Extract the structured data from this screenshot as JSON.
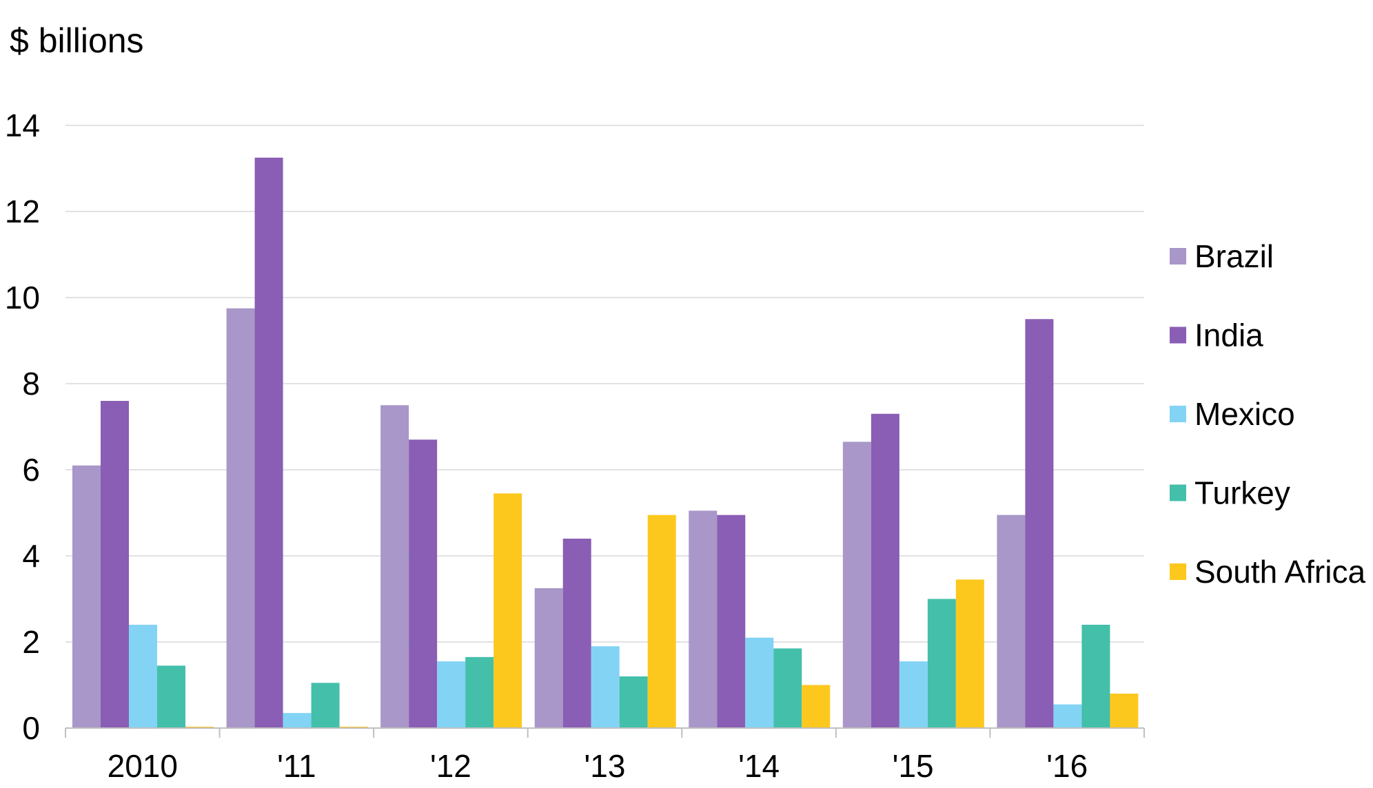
{
  "chart_data": {
    "type": "bar",
    "title": "",
    "ylabel": "$ billions",
    "xlabel": "",
    "ylim": [
      0,
      14
    ],
    "yticks": [
      0,
      2,
      4,
      6,
      8,
      10,
      12,
      14
    ],
    "grid": true,
    "legend_position": "right",
    "categories": [
      "2010",
      "'11",
      "'12",
      "'13",
      "'14",
      "'15",
      "'16"
    ],
    "series": [
      {
        "name": "Brazil",
        "color": "#a897c8",
        "values": [
          6.1,
          9.75,
          7.5,
          3.25,
          5.05,
          6.65,
          4.95
        ]
      },
      {
        "name": "India",
        "color": "#8a5eb4",
        "values": [
          7.6,
          13.25,
          6.7,
          4.4,
          4.95,
          7.3,
          9.5
        ]
      },
      {
        "name": "Mexico",
        "color": "#83d3f5",
        "values": [
          2.4,
          0.35,
          1.55,
          1.9,
          2.1,
          1.55,
          0.55
        ]
      },
      {
        "name": "Turkey",
        "color": "#43bfaa",
        "values": [
          1.45,
          1.05,
          1.65,
          1.2,
          1.85,
          3.0,
          2.4
        ]
      },
      {
        "name": "South Africa",
        "color": "#fdc81e",
        "values": [
          0.03,
          0.03,
          5.45,
          4.95,
          1.0,
          3.45,
          0.8
        ]
      }
    ]
  }
}
